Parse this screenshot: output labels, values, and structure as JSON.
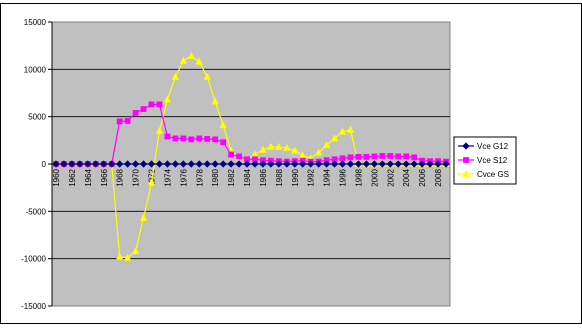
{
  "chart_data": {
    "type": "line",
    "x": [
      1960,
      1961,
      1962,
      1963,
      1964,
      1965,
      1966,
      1967,
      1968,
      1969,
      1970,
      1971,
      1972,
      1973,
      1974,
      1975,
      1976,
      1977,
      1978,
      1979,
      1980,
      1981,
      1982,
      1983,
      1984,
      1985,
      1986,
      1987,
      1988,
      1989,
      1990,
      1991,
      1992,
      1993,
      1994,
      1995,
      1996,
      1997,
      1998,
      1999,
      2000,
      2001,
      2002,
      2003,
      2004,
      2005,
      2006,
      2007,
      2008,
      2009
    ],
    "x_tick_labels": [
      "1960",
      "1962",
      "1964",
      "1966",
      "1968",
      "1970",
      "1972",
      "1974",
      "1976",
      "1978",
      "1980",
      "1982",
      "1984",
      "1986",
      "1988",
      "1990",
      "1992",
      "1994",
      "1996",
      "1998",
      "2000",
      "2002",
      "2004",
      "2006",
      "2008"
    ],
    "y_tick_labels": [
      "15000",
      "10000",
      "5000",
      "0",
      "-5000",
      "-10000",
      "-15000"
    ],
    "ylim": [
      -15000,
      15000
    ],
    "y_ticks": [
      15000,
      10000,
      5000,
      0,
      -5000,
      -10000,
      -15000
    ],
    "grid": "horizontal",
    "legend_position": "right",
    "series": [
      {
        "name": "Vce G12",
        "color": "#000080",
        "marker": "diamond",
        "values": [
          0,
          0,
          0,
          0,
          0,
          0,
          0,
          0,
          0,
          0,
          0,
          0,
          0,
          0,
          0,
          0,
          0,
          0,
          0,
          0,
          0,
          0,
          0,
          0,
          0,
          0,
          0,
          0,
          0,
          0,
          0,
          0,
          0,
          0,
          0,
          0,
          0,
          0,
          0,
          0,
          0,
          0,
          0,
          0,
          0,
          0,
          0,
          0,
          0,
          0
        ]
      },
      {
        "name": "Vce S12",
        "color": "#ff00ff",
        "marker": "square",
        "values": [
          0,
          0,
          0,
          0,
          0,
          0,
          0,
          0,
          4500,
          4550,
          5400,
          5800,
          6300,
          6300,
          2900,
          2700,
          2700,
          2600,
          2700,
          2650,
          2600,
          2300,
          1000,
          800,
          500,
          500,
          400,
          350,
          300,
          250,
          300,
          350,
          250,
          250,
          400,
          500,
          600,
          700,
          750,
          750,
          800,
          850,
          850,
          800,
          800,
          700,
          350,
          300,
          300,
          250
        ]
      },
      {
        "name": "Cvce GS",
        "color": "#ffff00",
        "marker": "triangle",
        "values": [
          0,
          0,
          0,
          0,
          0,
          0,
          0,
          0,
          -9800,
          -9900,
          -9200,
          -5700,
          -2000,
          3500,
          6800,
          9200,
          10900,
          11400,
          10800,
          9200,
          6600,
          4100,
          1400,
          700,
          500,
          1000,
          1500,
          1800,
          1800,
          1700,
          1400,
          900,
          600,
          1200,
          2000,
          2700,
          3400,
          3600,
          0,
          0,
          0,
          0,
          0,
          0,
          0,
          0,
          0,
          0,
          0,
          0
        ]
      }
    ]
  }
}
